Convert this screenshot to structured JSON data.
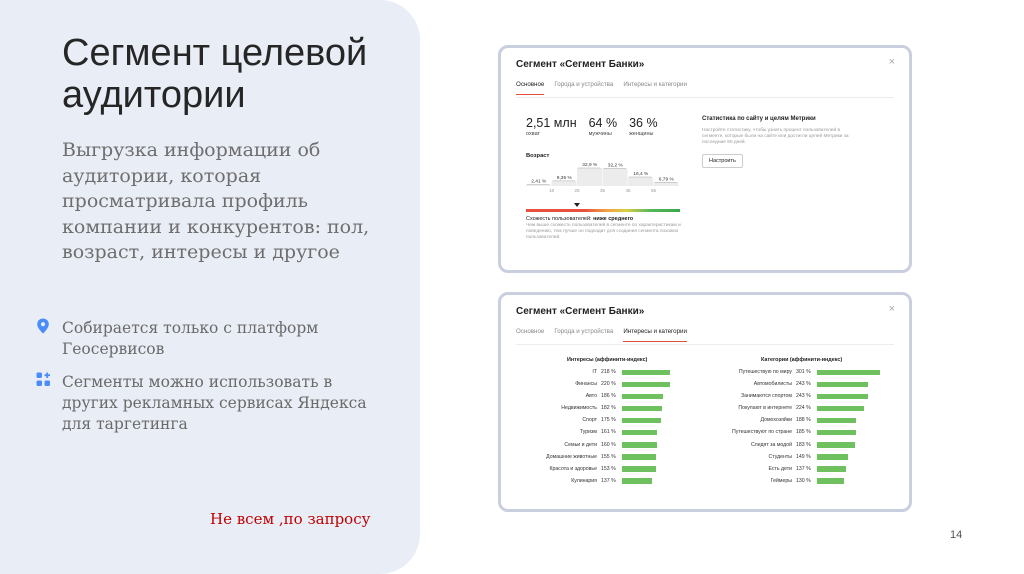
{
  "slide": {
    "title": "Сегмент целевой аудитории",
    "description": "Выгрузка информации об аудитории, которая просматривала профиль компании и конкурентов: пол, возраст, интересы и другое",
    "bullets": [
      {
        "icon": "location-pin-icon",
        "text": "Собирается только с платформ Геосервисов"
      },
      {
        "icon": "apps-icon",
        "text": "Сегменты можно использовать в других рекламных сервисах Яндекса для таргетинга"
      }
    ],
    "footnote": "Не всем ,по запросу",
    "page_number": "14",
    "accent_color": "#4a8df8"
  },
  "card1": {
    "title": "Сегмент «Сегмент Банки»",
    "close": "×",
    "tabs": [
      "Основное",
      "Города и устройства",
      "Интересы и категории"
    ],
    "active_tab": 0,
    "stats": [
      {
        "value": "2,51 млн",
        "label": "охват"
      },
      {
        "value": "64 %",
        "label": "мужчины"
      },
      {
        "value": "36 %",
        "label": "женщины"
      }
    ],
    "age_title": "Возраст",
    "age_bars": [
      {
        "pct": "2,41 %",
        "value": 2.41
      },
      {
        "pct": "9,35 %",
        "value": 9.35
      },
      {
        "pct": "32,9 %",
        "value": 32.9
      },
      {
        "pct": "32,2 %",
        "value": 32.2
      },
      {
        "pct": "16,4 %",
        "value": 16.4
      },
      {
        "pct": "6,79 %",
        "value": 6.79
      }
    ],
    "age_ticks": [
      "18",
      "25",
      "35",
      "45",
      "55"
    ],
    "similarity_title": "Схожесть пользователей: ",
    "similarity_value": "ниже среднего",
    "similarity_level": 0.31,
    "similarity_desc": "Чем выше схожесть пользователей в сегменте по характеристикам и поведению, тем лучше он подходит для создания сегмента похожих пользователей.",
    "goals_title": "Статистика по сайту и целям Метрики",
    "goals_desc": "Настройте статистику, чтобы узнать процент пользователей в сегменте, которые были на сайте или достигли целей Метрики за последние 90 дней.",
    "setup_button": "Настроить",
    "gradient_colors": [
      "#e85040",
      "#f0a040",
      "#d9d040",
      "#3aa84a"
    ]
  },
  "card2": {
    "title": "Сегмент «Сегмент Банки»",
    "close": "×",
    "tabs": [
      "Основное",
      "Города и устройства",
      "Интересы и категории"
    ],
    "active_tab": 2,
    "bar_color": "#6ec15e",
    "interests_title": "Интересы (аффинити-индекс)",
    "interests": [
      {
        "label": "IT",
        "pct": "218 %",
        "value": 218
      },
      {
        "label": "Финансы",
        "pct": "220 %",
        "value": 220
      },
      {
        "label": "Авто",
        "pct": "186 %",
        "value": 186
      },
      {
        "label": "Недвижимость",
        "pct": "182 %",
        "value": 182
      },
      {
        "label": "Спорт",
        "pct": "175 %",
        "value": 175
      },
      {
        "label": "Туризм",
        "pct": "161 %",
        "value": 161
      },
      {
        "label": "Семьи и дети",
        "pct": "160 %",
        "value": 160
      },
      {
        "label": "Домашние животные",
        "pct": "155 %",
        "value": 155
      },
      {
        "label": "Красота и здоровье",
        "pct": "153 %",
        "value": 153
      },
      {
        "label": "Кулинария",
        "pct": "137 %",
        "value": 137
      }
    ],
    "categories_title": "Категории (аффинити-индекс)",
    "categories": [
      {
        "label": "Путешествую по миру",
        "pct": "301 %",
        "value": 301
      },
      {
        "label": "Автомобилисты",
        "pct": "243 %",
        "value": 243
      },
      {
        "label": "Занимаются спортом",
        "pct": "243 %",
        "value": 243
      },
      {
        "label": "Покупают в интернете",
        "pct": "224 %",
        "value": 224
      },
      {
        "label": "Домохозяйки",
        "pct": "188 %",
        "value": 188
      },
      {
        "label": "Путешествуют по стране",
        "pct": "185 %",
        "value": 185
      },
      {
        "label": "Следят за модой",
        "pct": "183 %",
        "value": 183
      },
      {
        "label": "Студенты",
        "pct": "149 %",
        "value": 149
      },
      {
        "label": "Есть дети",
        "pct": "137 %",
        "value": 137
      },
      {
        "label": "Геймеры",
        "pct": "130 %",
        "value": 130
      }
    ]
  }
}
